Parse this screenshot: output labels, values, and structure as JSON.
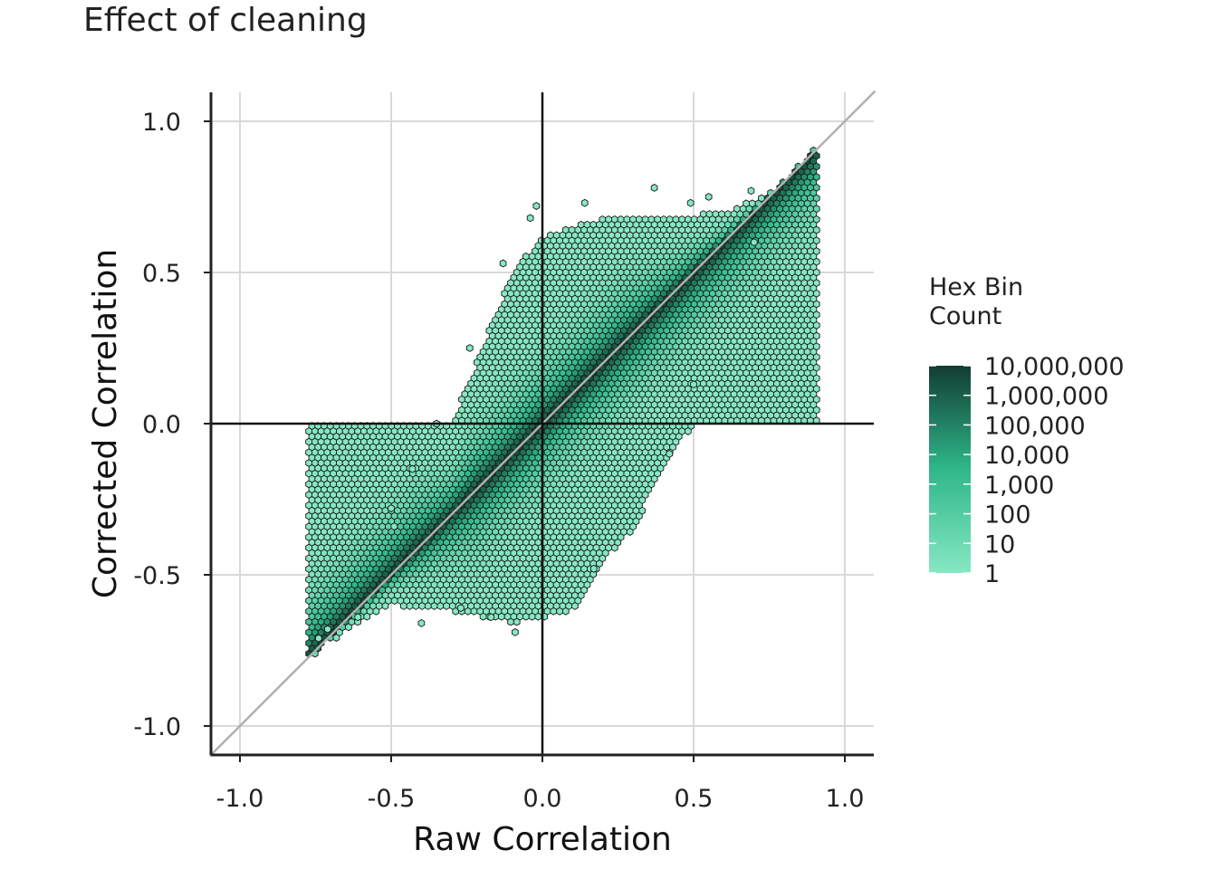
{
  "chart_data": {
    "type": "hexbin",
    "title": "Effect of cleaning",
    "xlabel": "Raw Correlation",
    "ylabel": "Corrected Correlation",
    "xlim": [
      -1.1,
      1.1
    ],
    "ylim": [
      -1.1,
      1.1
    ],
    "x_ticks": [
      -1.0,
      -0.5,
      0.0,
      0.5,
      1.0
    ],
    "y_ticks": [
      -1.0,
      -0.5,
      0.0,
      0.5,
      1.0
    ],
    "x_tick_labels": [
      "-1.0",
      "-0.5",
      "0.0",
      "0.5",
      "1.0"
    ],
    "y_tick_labels": [
      "-1.0",
      "-0.5",
      "0.0",
      "0.5",
      "1.0"
    ],
    "grid": true,
    "reference_lines": {
      "x": 0,
      "y": 0,
      "identity": true
    },
    "legend": {
      "title_lines": [
        "Hex Bin",
        "Count"
      ],
      "placement": "right",
      "scale": "log10",
      "labels": [
        "10,000,000",
        "1,000,000",
        "100,000",
        "10,000",
        "1,000",
        "100",
        "10",
        "1"
      ],
      "values": [
        10000000,
        1000000,
        100000,
        10000,
        1000,
        100,
        10,
        1
      ],
      "color_low": "#86e8c2",
      "color_high": "#123d31"
    },
    "density_band": {
      "description_values": "point cloud along y = x",
      "slope": 1.0,
      "ridge_points": [
        [
          -0.75,
          -0.75
        ],
        [
          -0.4,
          -0.4
        ],
        [
          0.0,
          0.0
        ],
        [
          0.4,
          0.4
        ],
        [
          0.9,
          0.9
        ]
      ],
      "band_half_width_max": 0.42,
      "band_extent_x": [
        -0.78,
        0.91
      ],
      "upper_edge": [
        [
          -0.3,
          0.0
        ],
        [
          -0.2,
          0.25
        ],
        [
          -0.1,
          0.5
        ],
        [
          0.0,
          0.62
        ],
        [
          0.2,
          0.68
        ],
        [
          0.4,
          0.68
        ],
        [
          0.6,
          0.7
        ],
        [
          0.75,
          0.76
        ]
      ],
      "lower_edge": [
        [
          -0.7,
          -0.72
        ],
        [
          -0.5,
          -0.6
        ],
        [
          -0.3,
          -0.62
        ],
        [
          -0.1,
          -0.66
        ],
        [
          0.1,
          -0.62
        ],
        [
          0.2,
          -0.45
        ],
        [
          0.3,
          -0.35
        ],
        [
          0.4,
          -0.15
        ],
        [
          0.5,
          0.0
        ]
      ]
    },
    "outlier_points": [
      [
        -0.04,
        0.68
      ],
      [
        0.14,
        0.73
      ],
      [
        0.37,
        0.78
      ],
      [
        0.49,
        0.73
      ],
      [
        0.69,
        0.77
      ],
      [
        -0.13,
        0.53
      ],
      [
        -0.24,
        0.25
      ],
      [
        -0.35,
        0.0
      ],
      [
        -0.43,
        -0.15
      ],
      [
        -0.5,
        -0.28
      ],
      [
        -0.49,
        -0.34
      ],
      [
        -0.61,
        -0.64
      ],
      [
        -0.71,
        -0.68
      ],
      [
        -0.74,
        -0.71
      ],
      [
        -0.4,
        -0.66
      ],
      [
        -0.27,
        -0.61
      ],
      [
        -0.17,
        -0.64
      ],
      [
        -0.09,
        -0.69
      ],
      [
        0.17,
        -0.48
      ],
      [
        0.42,
        -0.1
      ],
      [
        0.5,
        0.13
      ],
      [
        0.32,
        -0.27
      ],
      [
        0.7,
        0.6
      ],
      [
        0.55,
        0.75
      ],
      [
        -0.02,
        0.72
      ]
    ]
  }
}
